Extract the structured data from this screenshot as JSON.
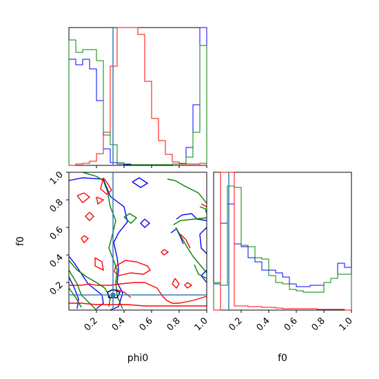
{
  "chart_data": {
    "type": "corner-plot",
    "parameters": [
      "phi0",
      "f0"
    ],
    "xlabel_phi0": "phi0",
    "xlabel_f0": "f0",
    "ylabel_f0": "f0",
    "truth": {
      "phi0": 0.32,
      "f0": 0.11
    },
    "truth_color": "#3b78b0",
    "tick_values": [
      0.2,
      0.4,
      0.6,
      0.8,
      1.0
    ],
    "tick_labels": [
      "0.2",
      "0.4",
      "0.6",
      "0.8",
      "1.0"
    ],
    "range": [
      0.0,
      1.0
    ],
    "series": [
      {
        "color": "#0000ff",
        "hist_phi0": [
          0.77,
          0.73,
          0.77,
          0.7,
          0.47,
          0.12,
          0.02,
          0.01,
          0.005,
          0.005,
          0.005,
          0.005,
          0.005,
          0.005,
          0.005,
          0.01,
          0.015,
          0.13,
          0.44,
          1.0
        ],
        "hist_f0": [
          0.19,
          0.63,
          0.77,
          0.48,
          0.46,
          0.38,
          0.35,
          0.29,
          0.29,
          0.27,
          0.24,
          0.19,
          0.17,
          0.17,
          0.18,
          0.18,
          0.2,
          0.23,
          0.34,
          0.31
        ]
      },
      {
        "color": "#ff0000",
        "hist_phi0": [
          0.0,
          0.01,
          0.015,
          0.03,
          0.085,
          0.22,
          0.72,
          1.0,
          1.0,
          1.0,
          0.95,
          0.61,
          0.34,
          0.18,
          0.08,
          0.025,
          0.01,
          0.01,
          0.01,
          0.015
        ],
        "hist_f0": [
          0.0,
          1.0,
          1.0,
          0.03,
          0.03,
          0.025,
          0.025,
          0.02,
          0.02,
          0.015,
          0.01,
          0.01,
          0.01,
          0.01,
          0.01,
          0.005,
          0.005,
          0.005,
          0.005,
          0.0
        ]
      },
      {
        "color": "#008000",
        "hist_phi0": [
          0.91,
          0.82,
          0.84,
          0.84,
          0.76,
          0.24,
          0.15,
          0.02,
          0.01,
          0.005,
          0.005,
          0.005,
          0.005,
          0.005,
          0.005,
          0.01,
          0.015,
          0.06,
          0.24,
          0.87
        ],
        "hist_f0": [
          0.2,
          0.18,
          0.9,
          0.89,
          0.47,
          0.46,
          0.38,
          0.37,
          0.25,
          0.2,
          0.19,
          0.15,
          0.14,
          0.13,
          0.13,
          0.13,
          0.2,
          0.23,
          0.26,
          0.26
        ]
      }
    ]
  }
}
